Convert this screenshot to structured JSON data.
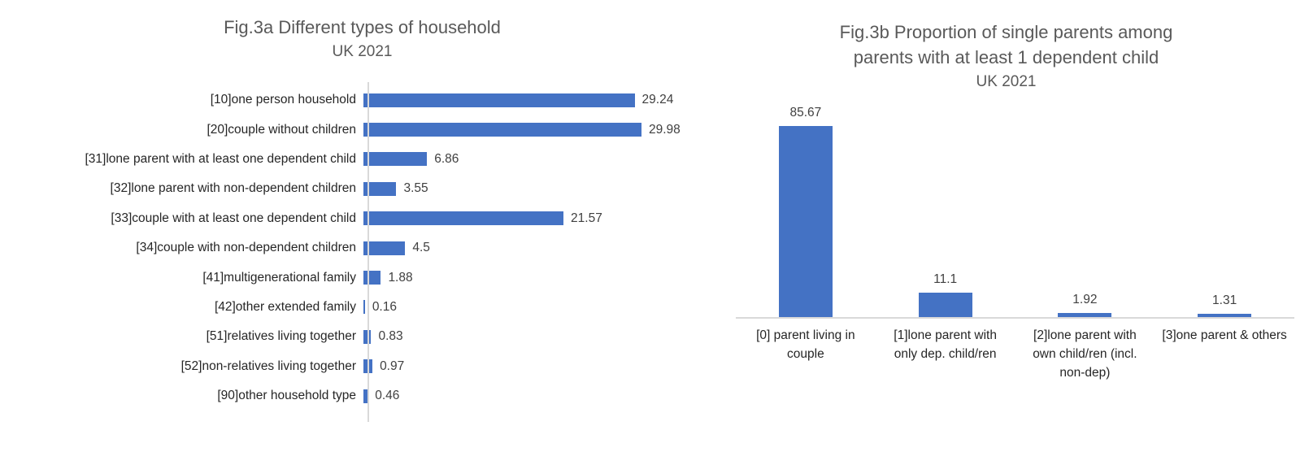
{
  "styles": {
    "bar_color": "#4472C4",
    "title_color": "#595959",
    "value_label_color": "#404040",
    "category_color": "#262626",
    "axis_color": "#D9D9D9"
  },
  "chart_data": [
    {
      "id": "fig3a",
      "type": "bar",
      "orientation": "horizontal",
      "title": "Fig.3a Different types of household",
      "subtitle": "UK 2021",
      "categories": [
        "[10]one person household",
        "[20]couple without children",
        "[31]lone parent with at least one dependent child",
        "[32]lone parent with non-dependent children",
        "[33]couple with at least one dependent child",
        "[34]couple with non-dependent children",
        "[41]multigenerational family",
        "[42]other extended family",
        "[51]relatives living together",
        "[52]non-relatives living together",
        "[90]other household type"
      ],
      "values": [
        29.24,
        29.98,
        6.86,
        3.55,
        21.57,
        4.5,
        1.88,
        0.16,
        0.83,
        0.97,
        0.46
      ],
      "value_labels": [
        "29.24",
        "29.98",
        "6.86",
        "3.55",
        "21.57",
        "4.5",
        "1.88",
        "0.16",
        "0.83",
        "0.97",
        "0.46"
      ],
      "xlabel": "",
      "ylabel": "",
      "xlim": [
        0,
        35
      ],
      "gridlines": false,
      "legend": "none",
      "data_labels": "outside-end"
    },
    {
      "id": "fig3b",
      "type": "bar",
      "orientation": "vertical",
      "title": "Fig.3b Proportion of single parents among parents with at least 1 dependent child",
      "title_lines": [
        "Fig.3b Proportion of single parents among",
        "parents with at least 1 dependent child"
      ],
      "subtitle": "UK 2021",
      "categories": [
        "[0] parent living in couple",
        "[1]lone parent with only dep. child/ren",
        "[2]lone parent with own child/ren (incl. non-dep)",
        "[3]one parent & others"
      ],
      "values": [
        85.67,
        11.1,
        1.92,
        1.31
      ],
      "value_labels": [
        "85.67",
        "11.1",
        "1.92",
        "1.31"
      ],
      "xlabel": "",
      "ylabel": "",
      "ylim": [
        0,
        90
      ],
      "gridlines": false,
      "legend": "none",
      "data_labels": "outside-end"
    }
  ]
}
